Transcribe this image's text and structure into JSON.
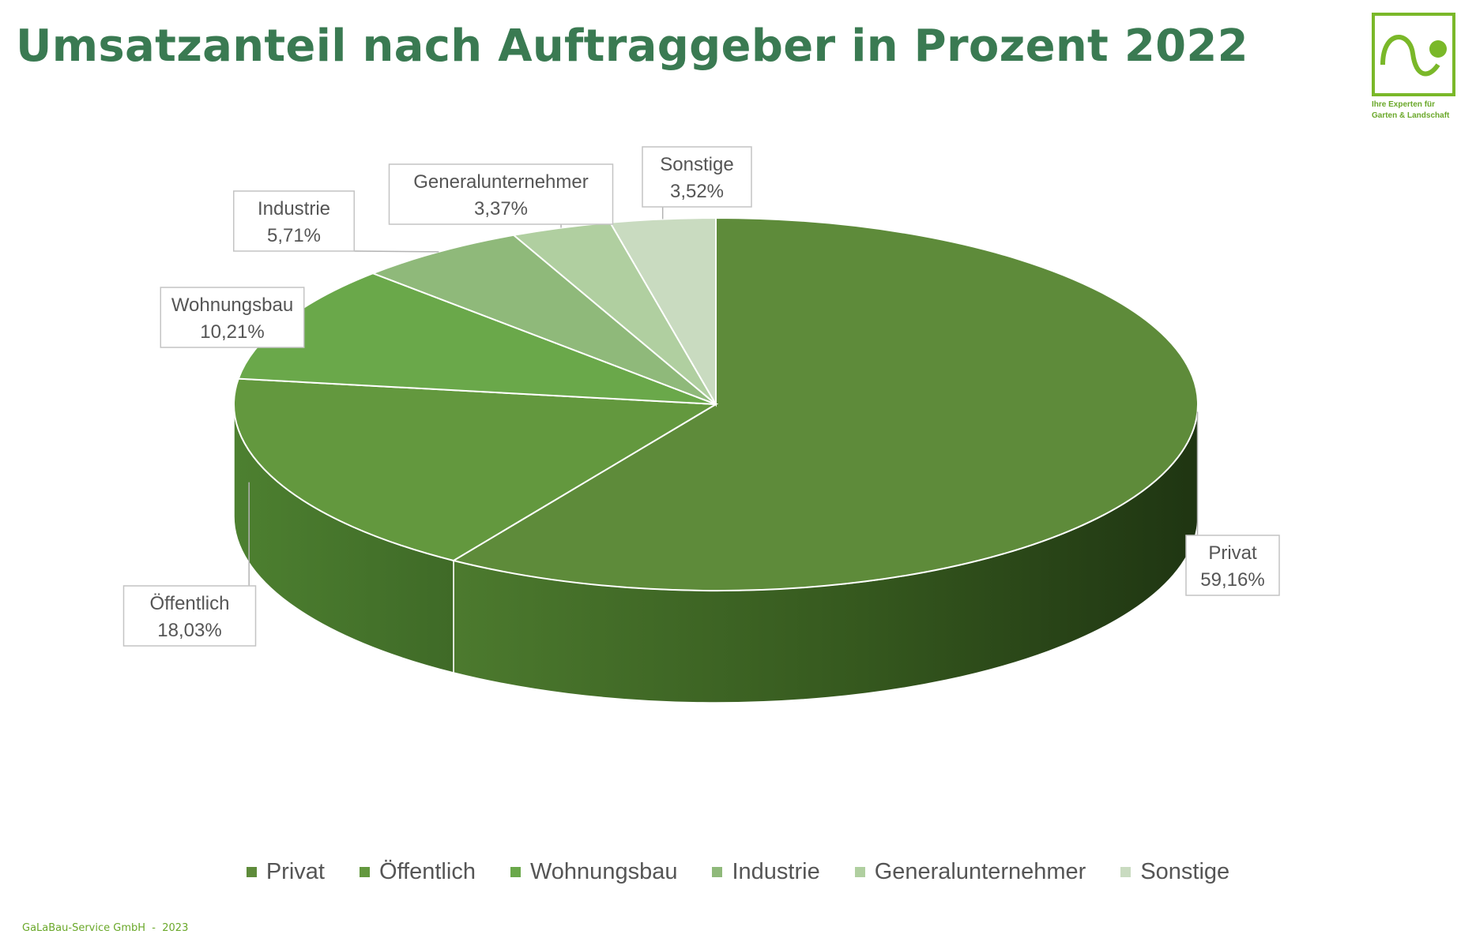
{
  "title": "Umsatzanteil nach Auftraggeber in Prozent 2022",
  "logo": {
    "line1": "Ihre Experten für",
    "line2": "Garten & Landschaft",
    "color": "#7ab829"
  },
  "footer": {
    "company": "GaLaBau-Service GmbH",
    "separator": "-",
    "year": "2023"
  },
  "chart_data": {
    "type": "pie",
    "style": "3d",
    "legend_position": "bottom",
    "slices": [
      {
        "name": "Privat",
        "value": 59.16,
        "label": "59,16%",
        "color": "#5e8b3a"
      },
      {
        "name": "Öffentlich",
        "value": 18.03,
        "label": "18,03%",
        "color": "#63983e"
      },
      {
        "name": "Wohnungsbau",
        "value": 10.21,
        "label": "10,21%",
        "color": "#6aa84a"
      },
      {
        "name": "Industrie",
        "value": 5.71,
        "label": "5,71%",
        "color": "#8fb97a"
      },
      {
        "name": "Generalunternehmer",
        "value": 3.37,
        "label": "3,37%",
        "color": "#b0cfa0"
      },
      {
        "name": "Sonstige",
        "value": 3.52,
        "label": "3,52%",
        "color": "#c9dbc0"
      }
    ]
  }
}
